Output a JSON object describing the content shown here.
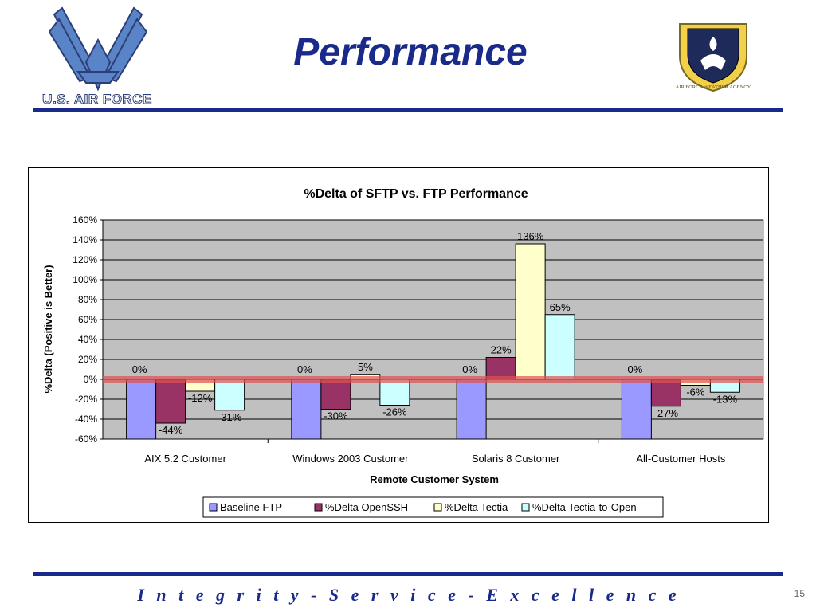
{
  "slide": {
    "title": "Performance",
    "org_logo_text": "U.S. AIR FORCE",
    "agency_seal_text": "AIR FORCE WEATHER AGENCY",
    "motto": "I n t e g r i t y - S e r v i c e - E x c e l l e n c e",
    "page_number": "15"
  },
  "colors": {
    "brand_blue": "#1a2a8a",
    "plot_bg": "#c0c0c0",
    "reference_line": "#e05050"
  },
  "icons": [
    "air-force-wings-icon",
    "weather-agency-seal-icon"
  ],
  "chart_data": {
    "type": "bar",
    "title": "%Delta of SFTP vs. FTP Performance",
    "xlabel": "Remote Customer System",
    "ylabel": "%Delta (Positive is Better)",
    "categories": [
      "AIX 5.2 Customer",
      "Windows 2003 Customer",
      "Solaris 8 Customer",
      "All-Customer Hosts"
    ],
    "ylim": [
      -60,
      160
    ],
    "yticks": [
      -60,
      -40,
      -20,
      0,
      20,
      40,
      60,
      80,
      100,
      120,
      140,
      160
    ],
    "ytick_format": "%",
    "grid": true,
    "legend_position": "bottom",
    "series": [
      {
        "name": "Baseline FTP",
        "color": "#9999ff",
        "values": [
          0,
          0,
          0,
          0
        ],
        "labels": [
          "0%",
          "0%",
          "0%",
          "0%"
        ]
      },
      {
        "name": "%Delta OpenSSH",
        "color": "#993366",
        "values": [
          -44,
          -30,
          22,
          -27
        ],
        "labels": [
          "-44%",
          "-30%",
          "22%",
          "-27%"
        ]
      },
      {
        "name": "%Delta Tectia",
        "color": "#ffffcc",
        "values": [
          -12,
          5,
          136,
          -6
        ],
        "labels": [
          "-12%",
          "5%",
          "136%",
          "-6%"
        ]
      },
      {
        "name": "%Delta Tectia-to-Open",
        "color": "#ccffff",
        "values": [
          -31,
          -26,
          65,
          -13
        ],
        "labels": [
          "-31%",
          "-26%",
          "65%",
          "-13%"
        ]
      }
    ]
  }
}
